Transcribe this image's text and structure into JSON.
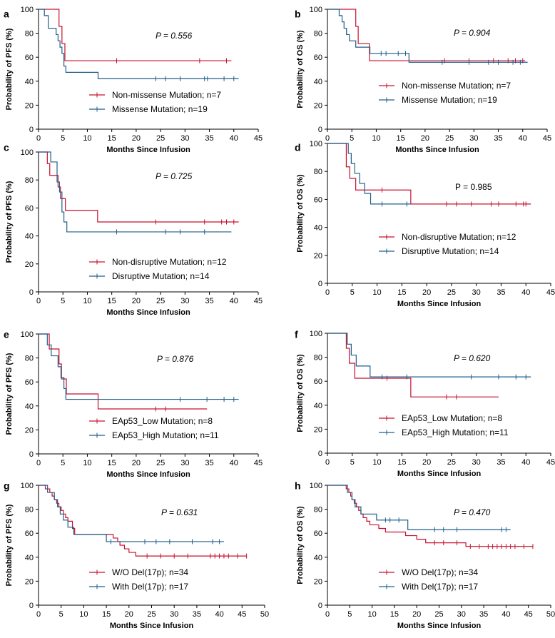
{
  "colors": {
    "red": "#c8102e",
    "blue": "#1f5f8b",
    "axis": "#000000"
  },
  "chart_data": [
    {
      "panel": "a",
      "type": "line",
      "title": "",
      "ylabel": "Probability of PFS (%)",
      "xlabel": "Months Since Infusion",
      "xlim": [
        0,
        45
      ],
      "ylim": [
        0,
        100
      ],
      "xticks": [
        "0",
        "5",
        "10",
        "15",
        "20",
        "25",
        "30",
        "35",
        "40",
        "45"
      ],
      "yticks": [
        "0",
        "20",
        "40",
        "60",
        "80",
        "100"
      ],
      "pvalue": "P = 0.556",
      "pvalue_italic": true,
      "series": [
        {
          "name": "Non-missense Mutation; n=7",
          "color": "red",
          "steps": [
            [
              0,
              100
            ],
            [
              4.2,
              85.7
            ],
            [
              4.8,
              71.4
            ],
            [
              5.4,
              57.1
            ],
            [
              39.5,
              57.1
            ]
          ],
          "censors": [
            16,
            33,
            38.5
          ]
        },
        {
          "name": "Missense Mutation; n=19",
          "color": "blue",
          "steps": [
            [
              0,
              100
            ],
            [
              1.2,
              94.7
            ],
            [
              2,
              84.2
            ],
            [
              3.6,
              78.9
            ],
            [
              4,
              73.7
            ],
            [
              4.4,
              68.4
            ],
            [
              4.8,
              63.2
            ],
            [
              5.2,
              52.6
            ],
            [
              5.6,
              47.4
            ],
            [
              12.2,
              42.1
            ],
            [
              41,
              42.1
            ]
          ],
          "censors": [
            24,
            26,
            29,
            34,
            34.6,
            38,
            40
          ]
        }
      ]
    },
    {
      "panel": "b",
      "type": "line",
      "title": "",
      "ylabel": "Probability of OS (%)",
      "xlabel": "Months Since Infusion",
      "xlim": [
        0,
        45
      ],
      "ylim": [
        0,
        100
      ],
      "xticks": [
        "0",
        "5",
        "10",
        "15",
        "20",
        "25",
        "30",
        "35",
        "40",
        "45"
      ],
      "yticks": [
        "0",
        "20",
        "40",
        "60",
        "80",
        "100"
      ],
      "pvalue": "P = 0.904",
      "pvalue_italic": true,
      "series": [
        {
          "name": "Non-missense Mutation; n=7",
          "color": "red",
          "steps": [
            [
              0,
              100
            ],
            [
              5.8,
              85.7
            ],
            [
              6.3,
              71.4
            ],
            [
              8.6,
              57.1
            ],
            [
              40.5,
              57.1
            ]
          ],
          "censors": [
            24,
            29,
            34,
            37,
            38.5,
            40
          ]
        },
        {
          "name": "Missense Mutation; n=19",
          "color": "blue",
          "steps": [
            [
              0,
              100
            ],
            [
              2.4,
              94.7
            ],
            [
              3,
              89.5
            ],
            [
              3.4,
              84.2
            ],
            [
              3.9,
              78.9
            ],
            [
              4.5,
              73.7
            ],
            [
              5.8,
              68.4
            ],
            [
              8.7,
              63.2
            ],
            [
              16.7,
              55.8
            ],
            [
              41,
              55.8
            ]
          ],
          "censors": [
            11,
            12,
            14.5,
            16,
            23.5,
            29,
            33,
            35,
            38,
            39.5
          ]
        }
      ]
    },
    {
      "panel": "c",
      "type": "line",
      "title": "",
      "ylabel": "Probability of PFS (%)",
      "xlabel": "Months Since Infusion",
      "xlim": [
        0,
        45
      ],
      "ylim": [
        0,
        100
      ],
      "xticks": [
        "0",
        "5",
        "10",
        "15",
        "20",
        "25",
        "30",
        "35",
        "40",
        "45"
      ],
      "yticks": [
        "0",
        "20",
        "40",
        "60",
        "80",
        "100"
      ],
      "pvalue": "P = 0.725",
      "pvalue_italic": true,
      "series": [
        {
          "name": "Non-disruptive Mutation; n=12",
          "color": "red",
          "steps": [
            [
              0,
              100
            ],
            [
              1.8,
              91.7
            ],
            [
              2.3,
              83.3
            ],
            [
              4,
              75
            ],
            [
              4.5,
              66.7
            ],
            [
              5.5,
              58.3
            ],
            [
              12.1,
              50
            ],
            [
              41,
              50
            ]
          ],
          "censors": [
            24,
            34,
            37.5,
            38.5,
            40
          ]
        },
        {
          "name": "Disruptive Mutation; n=14",
          "color": "blue",
          "steps": [
            [
              0,
              100
            ],
            [
              2.5,
              92.9
            ],
            [
              3.8,
              78.6
            ],
            [
              4.3,
              71.4
            ],
            [
              4.8,
              57.1
            ],
            [
              5.2,
              50
            ],
            [
              5.8,
              42.9
            ],
            [
              39.5,
              42.9
            ]
          ],
          "censors": [
            16,
            26,
            29,
            34
          ]
        }
      ]
    },
    {
      "panel": "d",
      "type": "line",
      "title": "",
      "ylabel": "Probability of OS (%)",
      "xlabel": "Months Since Infusion",
      "xlim": [
        0,
        45
      ],
      "ylim": [
        0,
        100
      ],
      "xticks": [
        "0",
        "5",
        "10",
        "15",
        "20",
        "25",
        "30",
        "35",
        "40",
        "45"
      ],
      "yticks": [
        "0",
        "20",
        "40",
        "60",
        "80",
        "100"
      ],
      "pvalue": "P = 0.985",
      "pvalue_italic": false,
      "series": [
        {
          "name": "Non-disruptive Mutation; n=12",
          "color": "red",
          "steps": [
            [
              0,
              100
            ],
            [
              3.8,
              83.3
            ],
            [
              4.5,
              75
            ],
            [
              5.7,
              66.7
            ],
            [
              16.8,
              56.7
            ],
            [
              41,
              56.7
            ]
          ],
          "censors": [
            11,
            24,
            26,
            29,
            33,
            34.5,
            38,
            39.5,
            40
          ]
        },
        {
          "name": "Disruptive Mutation; n=14",
          "color": "blue",
          "steps": [
            [
              0,
              100
            ],
            [
              4.2,
              92.9
            ],
            [
              4.8,
              85.7
            ],
            [
              5.5,
              78.6
            ],
            [
              6.5,
              71.4
            ],
            [
              7.5,
              64.3
            ],
            [
              8.7,
              56.7
            ],
            [
              17,
              56.7
            ]
          ],
          "censors": [
            11,
            16
          ]
        }
      ]
    },
    {
      "panel": "e",
      "type": "line",
      "title": "",
      "ylabel": "Probability of PFS (%)",
      "xlabel": "Months Since Infusion",
      "xlim": [
        0,
        45
      ],
      "ylim": [
        0,
        100
      ],
      "xticks": [
        "0",
        "5",
        "10",
        "15",
        "20",
        "25",
        "30",
        "35",
        "40",
        "45"
      ],
      "yticks": [
        "0",
        "20",
        "40",
        "60",
        "80",
        "100"
      ],
      "pvalue": "P = 0.876",
      "pvalue_italic": true,
      "series": [
        {
          "name": "EAp53_Low Mutation; n=8",
          "color": "red",
          "steps": [
            [
              0,
              100
            ],
            [
              2.2,
              87.5
            ],
            [
              4.2,
              75
            ],
            [
              4.7,
              62.5
            ],
            [
              5.7,
              50
            ],
            [
              12.2,
              37.5
            ],
            [
              34.5,
              37.5
            ]
          ],
          "censors": [
            24,
            26
          ]
        },
        {
          "name": "EAp53_High Mutation; n=11",
          "color": "blue",
          "steps": [
            [
              0,
              100
            ],
            [
              1.8,
              90.9
            ],
            [
              2.6,
              81.8
            ],
            [
              4,
              72.7
            ],
            [
              4.6,
              63.6
            ],
            [
              5.2,
              54.5
            ],
            [
              5.6,
              45.5
            ],
            [
              41,
              45.5
            ]
          ],
          "censors": [
            29,
            34.5,
            38,
            40
          ]
        }
      ]
    },
    {
      "panel": "f",
      "type": "line",
      "title": "",
      "ylabel": "Probability of OS (%)",
      "xlabel": "Months Since Infusion",
      "xlim": [
        0,
        45
      ],
      "ylim": [
        0,
        100
      ],
      "xticks": [
        "0",
        "5",
        "10",
        "15",
        "20",
        "25",
        "30",
        "35",
        "40",
        "45"
      ],
      "yticks": [
        "0",
        "20",
        "40",
        "60",
        "80",
        "100"
      ],
      "pvalue": "P = 0.620",
      "pvalue_italic": true,
      "series": [
        {
          "name": "EAp53_Low Mutation; n=8",
          "color": "red",
          "steps": [
            [
              0,
              100
            ],
            [
              3.8,
              87.5
            ],
            [
              4.4,
              75
            ],
            [
              5.5,
              62.5
            ],
            [
              16.8,
              46.9
            ],
            [
              34.5,
              46.9
            ]
          ],
          "censors": [
            12,
            24,
            26
          ]
        },
        {
          "name": "EAp53_High Mutation; n=11",
          "color": "blue",
          "steps": [
            [
              0,
              100
            ],
            [
              4,
              90.9
            ],
            [
              4.8,
              81.8
            ],
            [
              5.8,
              72.7
            ],
            [
              8.6,
              63.6
            ],
            [
              41,
              63.6
            ]
          ],
          "censors": [
            11,
            16,
            29,
            34.5,
            38,
            40
          ]
        }
      ]
    },
    {
      "panel": "g",
      "type": "line",
      "title": "",
      "ylabel": "Probability of PFS (%)",
      "xlabel": "Months Since Infusion",
      "xlim": [
        0,
        50
      ],
      "ylim": [
        0,
        100
      ],
      "xticks": [
        "0",
        "5",
        "10",
        "15",
        "20",
        "25",
        "30",
        "35",
        "40",
        "45",
        "50"
      ],
      "yticks": [
        "0",
        "20",
        "40",
        "60",
        "80",
        "100"
      ],
      "pvalue": "P = 0.631",
      "pvalue_italic": true,
      "series": [
        {
          "name": "W/O Del(17p); n=34",
          "color": "red",
          "steps": [
            [
              0,
              100
            ],
            [
              1.5,
              97
            ],
            [
              2.5,
              94
            ],
            [
              3,
              91
            ],
            [
              3.5,
              88
            ],
            [
              4,
              85
            ],
            [
              4.5,
              82
            ],
            [
              5,
              79
            ],
            [
              5.5,
              76
            ],
            [
              6,
              73
            ],
            [
              6.5,
              70
            ],
            [
              7.5,
              64
            ],
            [
              8,
              59
            ],
            [
              16.5,
              56
            ],
            [
              17.5,
              53
            ],
            [
              18,
              50
            ],
            [
              19,
              47
            ],
            [
              20,
              44
            ],
            [
              21.5,
              41
            ],
            [
              46,
              41
            ]
          ],
          "censors": [
            24,
            27,
            30,
            33,
            38,
            39,
            40,
            41,
            42,
            44,
            46
          ]
        },
        {
          "name": "With Del(17p); n=17",
          "color": "blue",
          "steps": [
            [
              0,
              100
            ],
            [
              2,
              94
            ],
            [
              3.5,
              88
            ],
            [
              4.2,
              82
            ],
            [
              4.8,
              76
            ],
            [
              5.5,
              71
            ],
            [
              6.5,
              65
            ],
            [
              7.8,
              59
            ],
            [
              15,
              53
            ],
            [
              41,
              53
            ]
          ],
          "censors": [
            16,
            23.5,
            26,
            29,
            34,
            38.5,
            40
          ]
        }
      ]
    },
    {
      "panel": "h",
      "type": "line",
      "title": "",
      "ylabel": "Probability of OS (%)",
      "xlabel": "Months Since Infusion",
      "xlim": [
        0,
        50
      ],
      "ylim": [
        0,
        100
      ],
      "xticks": [
        "0",
        "5",
        "10",
        "15",
        "20",
        "25",
        "30",
        "35",
        "40",
        "45",
        "50"
      ],
      "yticks": [
        "0",
        "20",
        "40",
        "60",
        "80",
        "100"
      ],
      "pvalue": "P = 0.470",
      "pvalue_italic": true,
      "series": [
        {
          "name": "W/O Del(17p); n=34",
          "color": "red",
          "steps": [
            [
              0,
              100
            ],
            [
              4.2,
              97
            ],
            [
              4.8,
              94
            ],
            [
              5.2,
              91
            ],
            [
              5.5,
              88
            ],
            [
              6,
              85
            ],
            [
              6.5,
              82
            ],
            [
              7,
              79
            ],
            [
              7.5,
              76
            ],
            [
              8,
              73
            ],
            [
              8.8,
              70
            ],
            [
              9.5,
              67
            ],
            [
              11.5,
              64
            ],
            [
              13,
              61
            ],
            [
              17.5,
              58
            ],
            [
              20,
              55
            ],
            [
              22,
              52
            ],
            [
              31,
              49
            ],
            [
              46,
              49
            ]
          ],
          "censors": [
            24,
            26,
            29,
            32,
            34,
            36,
            37,
            38,
            39,
            40,
            41,
            42,
            44,
            46
          ]
        },
        {
          "name": "With Del(17p); n=17",
          "color": "blue",
          "steps": [
            [
              0,
              100
            ],
            [
              4.5,
              94
            ],
            [
              5.5,
              88
            ],
            [
              6.2,
              82
            ],
            [
              7.5,
              76
            ],
            [
              11,
              71
            ],
            [
              18,
              63
            ],
            [
              41,
              63
            ]
          ],
          "censors": [
            13,
            14,
            16,
            24,
            26,
            29,
            39,
            40
          ]
        }
      ]
    }
  ]
}
